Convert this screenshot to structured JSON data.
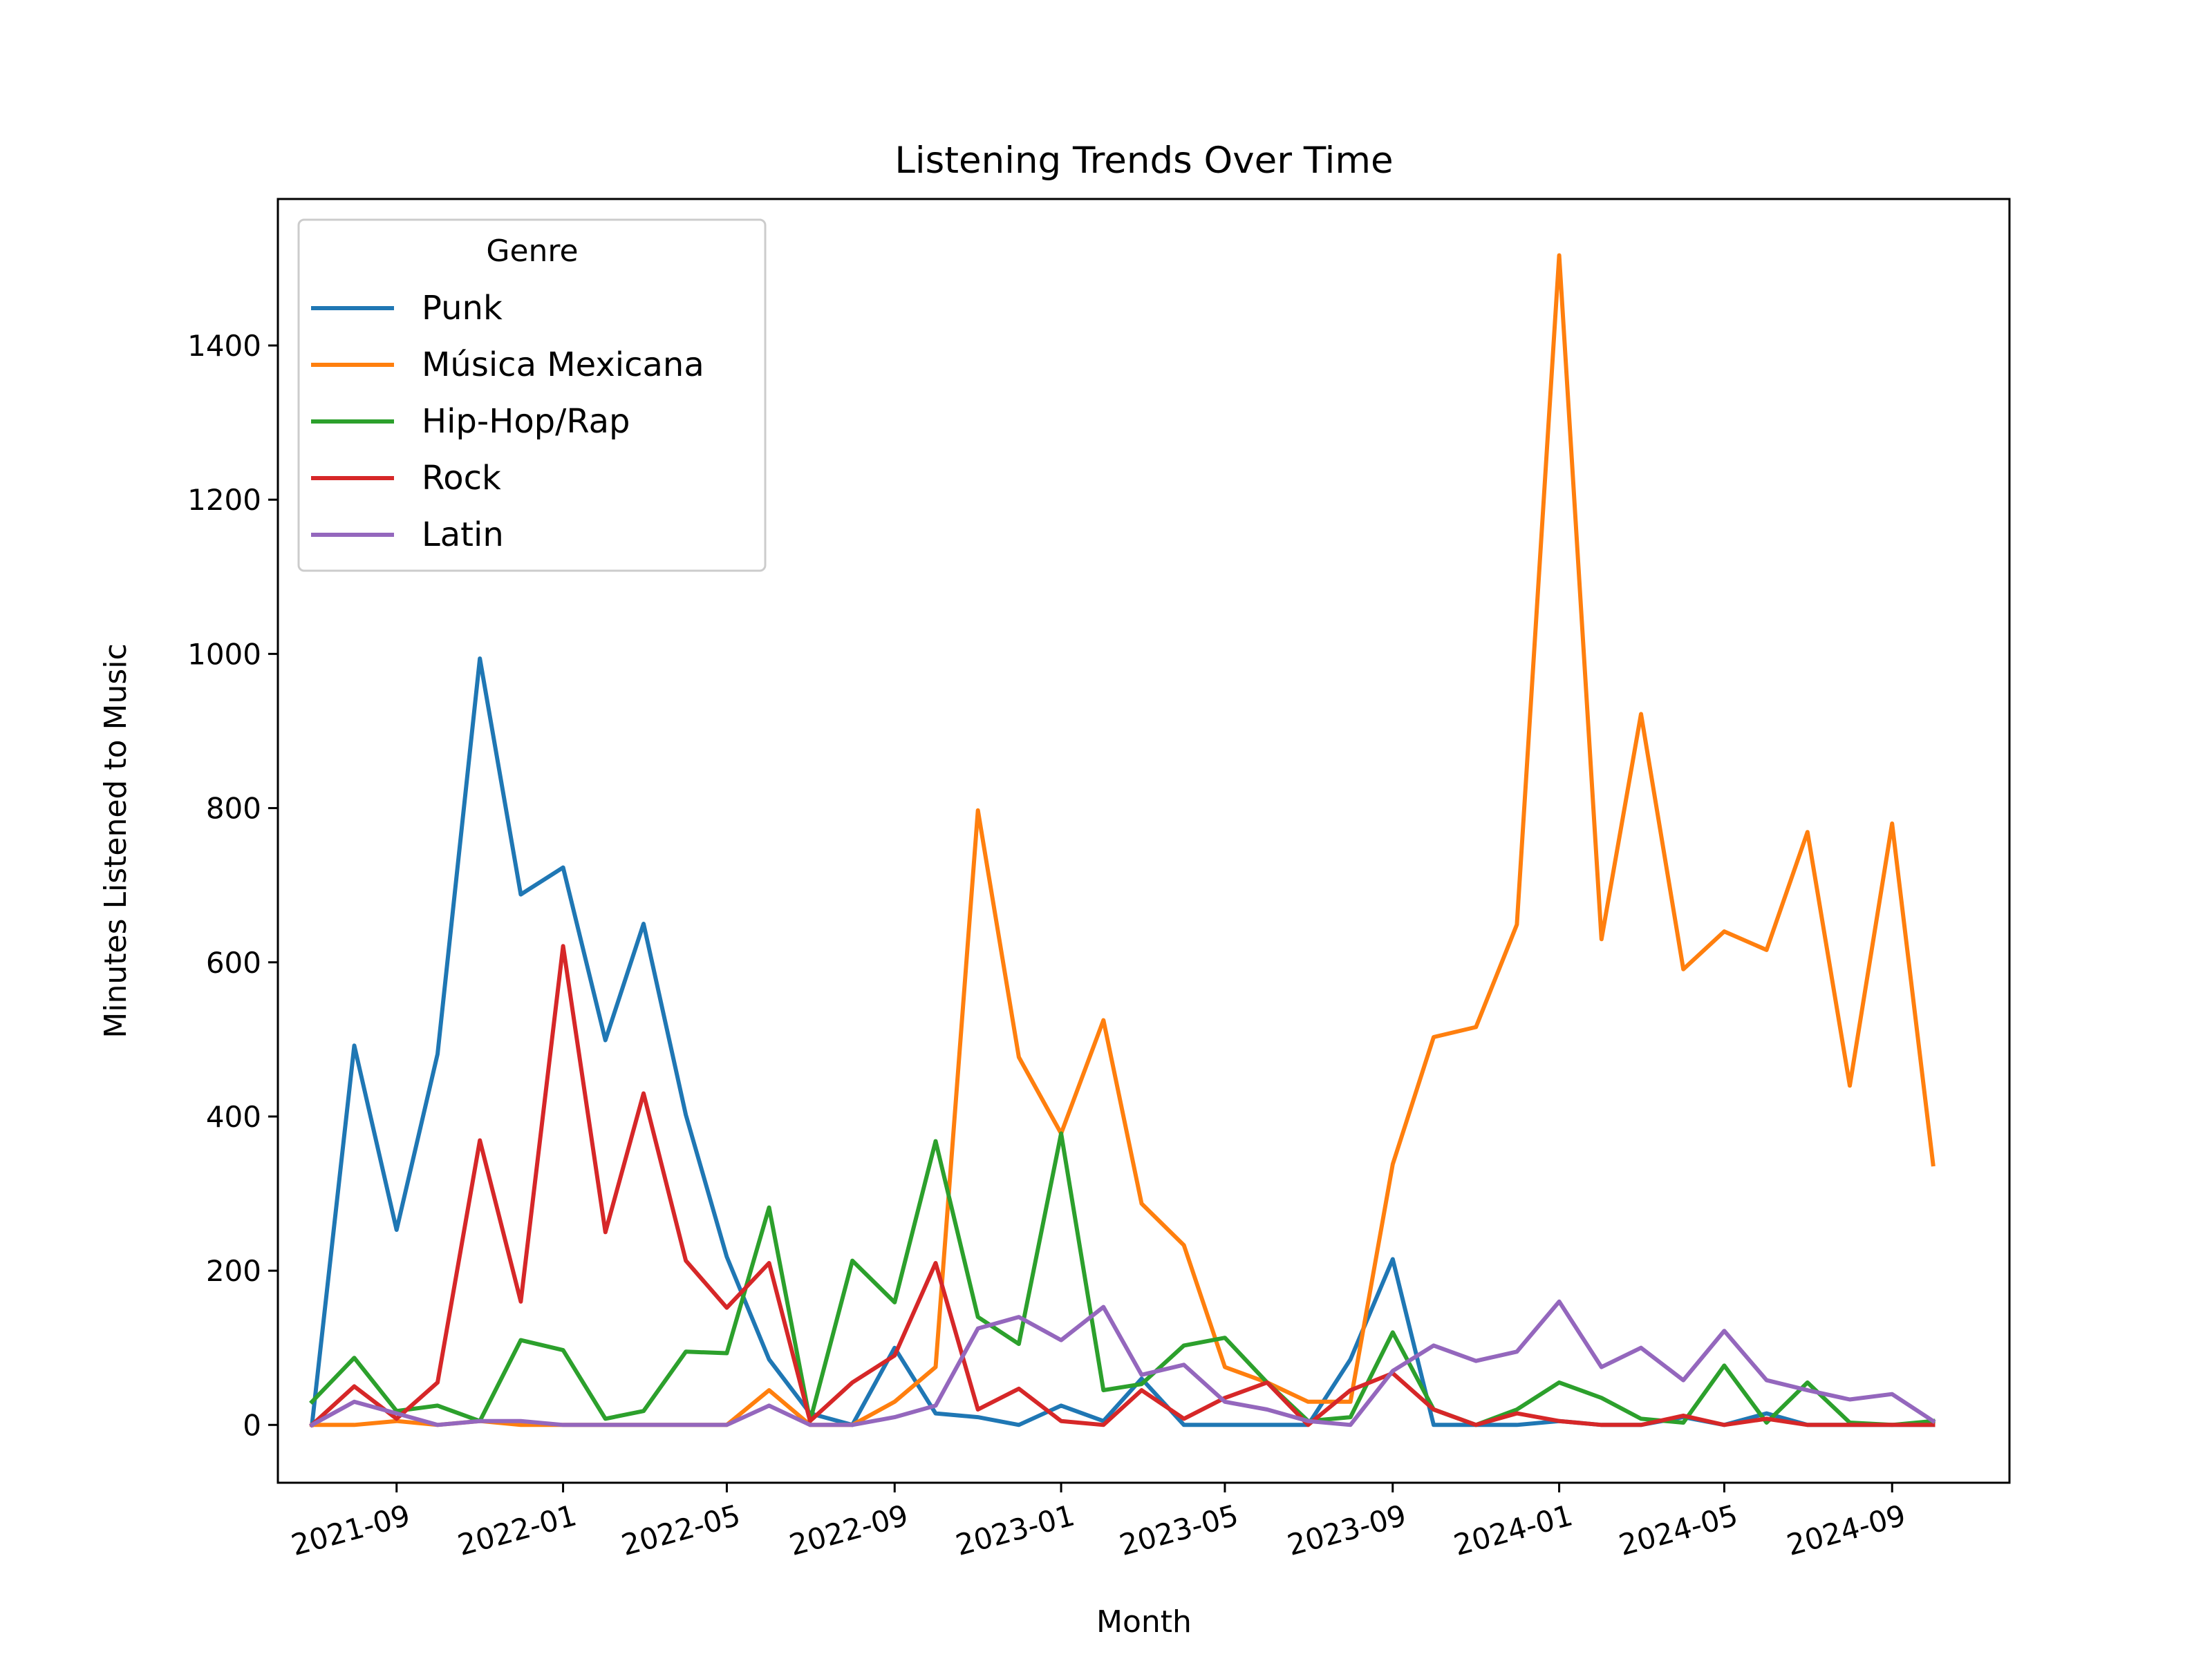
{
  "chart_data": {
    "type": "line",
    "title": "Listening Trends Over Time",
    "xlabel": "Month",
    "ylabel": "Minutes Listened to Music",
    "legend_title": "Genre",
    "legend_position": "upper-left",
    "grid": false,
    "xlim": [
      "2021-06-06",
      "2024-11-26"
    ],
    "ylim": [
      -75,
      1590
    ],
    "x_ticks": [
      "2021-09",
      "2022-01",
      "2022-05",
      "2022-09",
      "2023-01",
      "2023-05",
      "2023-09",
      "2024-01",
      "2024-05",
      "2024-09"
    ],
    "y_ticks": [
      0,
      200,
      400,
      600,
      800,
      1000,
      1200,
      1400
    ],
    "x": [
      "2021-07",
      "2021-08",
      "2021-09",
      "2021-10",
      "2021-11",
      "2021-12",
      "2022-01",
      "2022-02",
      "2022-03",
      "2022-04",
      "2022-05",
      "2022-06",
      "2022-07",
      "2022-08",
      "2022-09",
      "2022-10",
      "2022-11",
      "2022-12",
      "2023-01",
      "2023-02",
      "2023-03",
      "2023-04",
      "2023-05",
      "2023-06",
      "2023-07",
      "2023-08",
      "2023-09",
      "2023-10",
      "2023-11",
      "2023-12",
      "2024-01",
      "2024-02",
      "2024-03",
      "2024-04",
      "2024-05",
      "2024-06",
      "2024-07",
      "2024-08",
      "2024-09",
      "2024-10"
    ],
    "series": [
      {
        "name": "Punk",
        "color": "#1f77b4",
        "values": [
          0,
          492,
          253,
          481,
          994,
          688,
          723,
          499,
          650,
          402,
          218,
          85,
          15,
          0,
          100,
          15,
          10,
          0,
          25,
          5,
          60,
          0,
          0,
          0,
          0,
          85,
          215,
          0,
          0,
          0,
          5,
          0,
          0,
          10,
          0,
          15,
          0,
          0,
          0,
          0
        ]
      },
      {
        "name": "Música Mexicana",
        "color": "#ff7f0e",
        "values": [
          0,
          0,
          5,
          0,
          5,
          0,
          0,
          0,
          0,
          0,
          0,
          45,
          0,
          0,
          30,
          75,
          797,
          477,
          378,
          525,
          287,
          233,
          75,
          55,
          30,
          30,
          338,
          503,
          516,
          649,
          1517,
          630,
          922,
          591,
          640,
          616,
          769,
          440,
          780,
          338
        ]
      },
      {
        "name": "Hip-Hop/Rap",
        "color": "#2ca02c",
        "values": [
          30,
          87,
          18,
          25,
          5,
          110,
          97,
          8,
          18,
          95,
          93,
          282,
          5,
          213,
          159,
          368,
          140,
          105,
          378,
          45,
          53,
          103,
          113,
          55,
          5,
          10,
          120,
          20,
          0,
          20,
          55,
          35,
          8,
          3,
          77,
          3,
          55,
          3,
          0,
          5
        ]
      },
      {
        "name": "Rock",
        "color": "#d62728",
        "values": [
          0,
          50,
          8,
          55,
          369,
          160,
          621,
          250,
          430,
          213,
          152,
          210,
          5,
          55,
          90,
          210,
          20,
          47,
          5,
          0,
          45,
          8,
          35,
          55,
          0,
          45,
          67,
          20,
          0,
          15,
          5,
          0,
          0,
          12,
          0,
          8,
          0,
          0,
          0,
          0
        ]
      },
      {
        "name": "Latin",
        "color": "#9467bd",
        "values": [
          0,
          30,
          15,
          0,
          5,
          5,
          0,
          0,
          0,
          0,
          0,
          25,
          0,
          0,
          10,
          25,
          125,
          140,
          110,
          153,
          65,
          78,
          30,
          20,
          5,
          0,
          70,
          103,
          83,
          95,
          160,
          75,
          100,
          58,
          122,
          58,
          45,
          33,
          40,
          5
        ]
      }
    ]
  }
}
